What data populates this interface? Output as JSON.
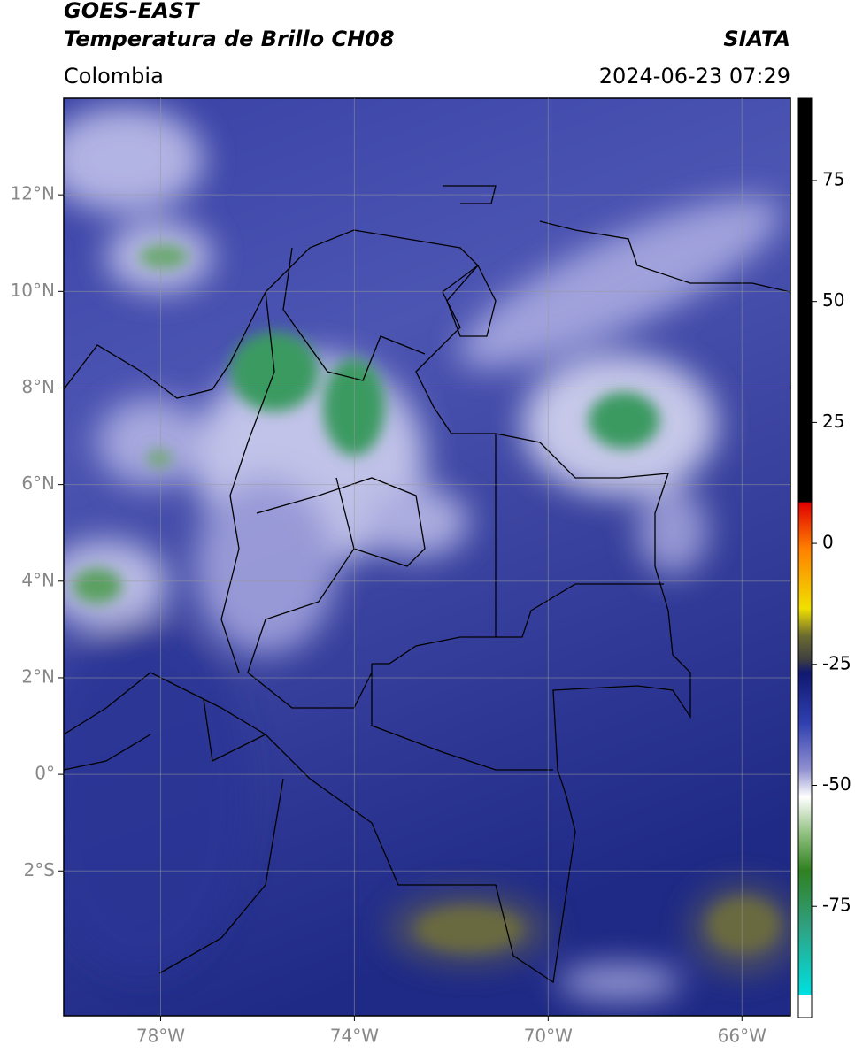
{
  "header": {
    "title": "GOES-EAST",
    "subtitle": "Temperatura de Brillo CH08",
    "region": "Colombia",
    "source": "SIATA",
    "datetime": "2024-06-23 07:29"
  },
  "map": {
    "xlim": [
      -80,
      -65
    ],
    "ylim": [
      -5,
      14
    ],
    "xticks": [
      {
        "value": -78,
        "label": "78°W"
      },
      {
        "value": -74,
        "label": "74°W"
      },
      {
        "value": -70,
        "label": "70°W"
      },
      {
        "value": -66,
        "label": "66°W"
      }
    ],
    "yticks": [
      {
        "value": 12,
        "label": "12°N"
      },
      {
        "value": 10,
        "label": "10°N"
      },
      {
        "value": 8,
        "label": "8°N"
      },
      {
        "value": 6,
        "label": "6°N"
      },
      {
        "value": 4,
        "label": "4°N"
      },
      {
        "value": 2,
        "label": "2°N"
      },
      {
        "value": 0,
        "label": "0°"
      },
      {
        "value": -2,
        "label": "2°S"
      }
    ],
    "grid": true
  },
  "colorbar": {
    "lim": [
      -98,
      92
    ],
    "ticks": [
      75,
      50,
      25,
      0,
      -25,
      -50,
      -75
    ]
  }
}
